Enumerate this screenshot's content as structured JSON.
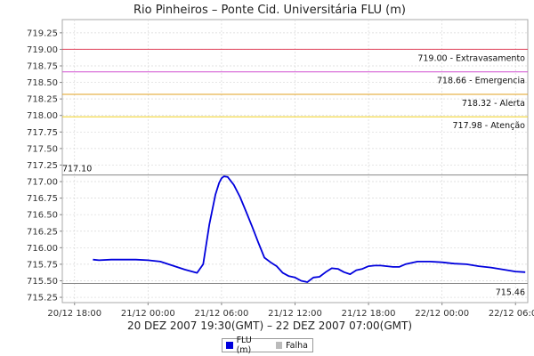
{
  "chart_data": {
    "type": "line",
    "title": "Rio Pinheiros – Ponte Cid. Universitária FLU (m)",
    "xlabel": "20 DEZ 2007 19:30(GMT) – 22 DEZ 2007 07:00(GMT)",
    "ylabel": "",
    "xlim": [
      -1,
      37
    ],
    "ylim": [
      715.17,
      719.45
    ],
    "grid": true,
    "x_ticks": [
      {
        "x": 0,
        "label": "20/12 18:00"
      },
      {
        "x": 6,
        "label": "21/12 00:00"
      },
      {
        "x": 12,
        "label": "21/12 06:00"
      },
      {
        "x": 18,
        "label": "21/12 12:00"
      },
      {
        "x": 24,
        "label": "21/12 18:00"
      },
      {
        "x": 30,
        "label": "22/12 00:00"
      },
      {
        "x": 36,
        "label": "22/12 06:00"
      }
    ],
    "y_ticks": [
      "715.25",
      "715.50",
      "715.75",
      "716.00",
      "716.25",
      "716.50",
      "716.75",
      "717.00",
      "717.25",
      "717.50",
      "717.75",
      "718.00",
      "718.25",
      "718.50",
      "718.75",
      "719.00",
      "719.25"
    ],
    "thresholds": [
      {
        "value": 719.0,
        "label": "719.00 - Extravasamento",
        "color": "#e0405a"
      },
      {
        "value": 718.66,
        "label": "718.66 - Emergencia",
        "color": "#d050d0"
      },
      {
        "value": 718.32,
        "label": "718.32 - Alerta",
        "color": "#e0a020"
      },
      {
        "value": 717.98,
        "label": "717.98 - Atenção",
        "color": "#f0d020"
      }
    ],
    "max_line": {
      "value": 717.1,
      "label": "717.10",
      "color": "#888888"
    },
    "min_line": {
      "value": 715.46,
      "label": "715.46",
      "color": "#888888"
    },
    "series": [
      {
        "name": "FLU (m)",
        "color": "#0000dd",
        "x": [
          1.5,
          2.0,
          3.0,
          4.0,
          5.0,
          6.0,
          7.0,
          8.0,
          9.0,
          10.0,
          10.5,
          11.0,
          11.5,
          11.8,
          12.0,
          12.2,
          12.5,
          13.0,
          13.5,
          14.0,
          14.5,
          15.0,
          15.5,
          16.0,
          16.5,
          17.0,
          17.5,
          18.0,
          18.5,
          19.0,
          19.5,
          20.0,
          20.5,
          21.0,
          21.5,
          22.0,
          22.5,
          23.0,
          23.5,
          24.0,
          24.5,
          25.0,
          25.5,
          26.0,
          26.5,
          27.0,
          27.5,
          28.0,
          29.0,
          30.0,
          31.0,
          32.0,
          33.0,
          34.0,
          35.0,
          36.0,
          36.8
        ],
        "values": [
          715.82,
          715.81,
          715.82,
          715.82,
          715.82,
          715.81,
          715.79,
          715.73,
          715.67,
          715.62,
          715.75,
          716.35,
          716.8,
          716.98,
          717.05,
          717.08,
          717.07,
          716.95,
          716.77,
          716.55,
          716.32,
          716.08,
          715.85,
          715.78,
          715.72,
          715.62,
          715.57,
          715.55,
          715.5,
          715.48,
          715.55,
          715.56,
          715.63,
          715.69,
          715.68,
          715.63,
          715.6,
          715.66,
          715.68,
          715.72,
          715.73,
          715.73,
          715.72,
          715.71,
          715.71,
          715.75,
          715.77,
          715.79,
          715.79,
          715.78,
          715.76,
          715.75,
          715.72,
          715.7,
          715.67,
          715.64,
          715.63
        ]
      }
    ],
    "legend": [
      {
        "label": "FLU (m)",
        "color": "#0000dd"
      },
      {
        "label": "Falha",
        "color": "#bbbbbb"
      }
    ],
    "legend_position": "bottom"
  }
}
